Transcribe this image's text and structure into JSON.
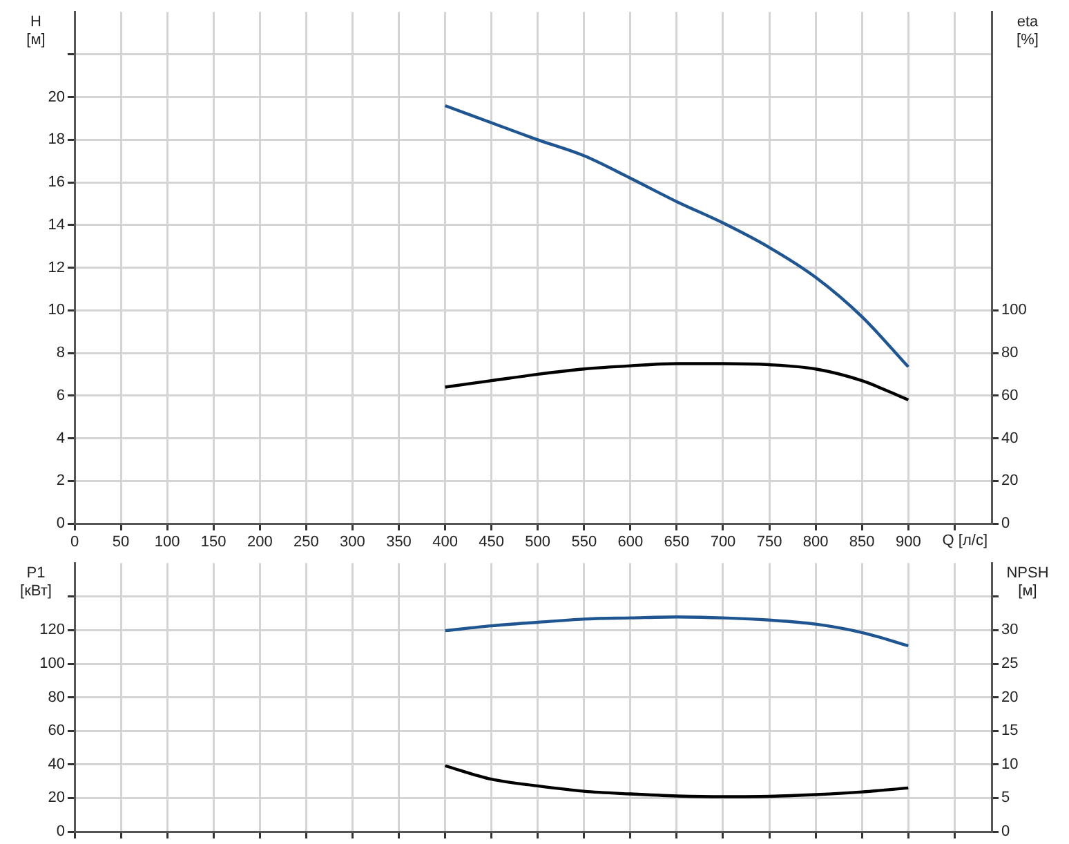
{
  "chart_data": [
    {
      "type": "line",
      "ylabel": "H [м]",
      "y2label": "eta [%]",
      "xlabel": "Q [л/с]",
      "x": [
        400,
        450,
        500,
        550,
        600,
        650,
        700,
        750,
        800,
        850,
        900
      ],
      "series": [
        {
          "color": "#1f5591",
          "values": [
            19.6,
            18.8,
            18.0,
            17.25,
            16.2,
            15.1,
            14.1,
            12.95,
            11.55,
            9.7,
            7.35
          ]
        },
        {
          "color": "#000000",
          "axis": "y2",
          "values": [
            64,
            67,
            70,
            72.5,
            74,
            75,
            75,
            74.5,
            72.5,
            67,
            58
          ]
        }
      ],
      "xlim": [
        0,
        990
      ],
      "xticks": [
        0,
        50,
        100,
        150,
        200,
        250,
        300,
        350,
        400,
        450,
        500,
        550,
        600,
        650,
        700,
        750,
        800,
        850,
        900,
        {
          "value": 950,
          "label": null
        }
      ],
      "ylim": [
        0,
        24
      ],
      "yticks": [
        0,
        2,
        4,
        6,
        8,
        10,
        12,
        14,
        16,
        18,
        20,
        {
          "value": 22,
          "label": null
        }
      ],
      "y2lim": [
        0,
        240
      ],
      "y2ticks": [
        0,
        20,
        40,
        60,
        80,
        100
      ],
      "grid": true
    },
    {
      "type": "line",
      "ylabel": "P1 [кВт]",
      "y2label": "NPSH [м]",
      "x": [
        400,
        450,
        500,
        550,
        600,
        650,
        700,
        750,
        800,
        850,
        900
      ],
      "series": [
        {
          "color": "#1f5591",
          "values": [
            119.7,
            122.6,
            124.7,
            126.6,
            127.3,
            127.9,
            127.3,
            126,
            123.6,
            118.6,
            110.7
          ]
        },
        {
          "color": "#000000",
          "axis": "y2",
          "values": [
            9.8,
            7.8,
            6.8,
            6.0,
            5.6,
            5.3,
            5.2,
            5.25,
            5.5,
            5.9,
            6.5
          ]
        }
      ],
      "xlim": [
        0,
        990
      ],
      "xticks": [
        0,
        50,
        100,
        150,
        200,
        250,
        300,
        350,
        400,
        450,
        500,
        550,
        600,
        650,
        700,
        750,
        800,
        850,
        900,
        {
          "value": 950,
          "label": null
        }
      ],
      "ylim": [
        0,
        160
      ],
      "yticks": [
        0,
        20,
        40,
        60,
        80,
        100,
        120,
        {
          "value": 140,
          "label": null
        }
      ],
      "y2lim": [
        0,
        40
      ],
      "y2ticks": [
        0,
        5,
        10,
        15,
        20,
        25,
        30,
        {
          "value": 35,
          "label": null
        }
      ],
      "grid": true,
      "tick_labels": "y"
    }
  ]
}
